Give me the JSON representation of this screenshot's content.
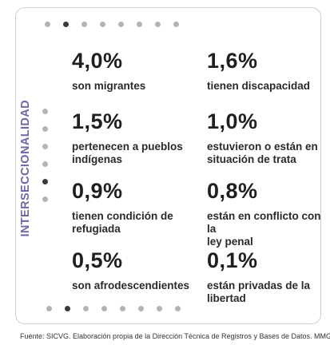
{
  "vertical_label": "INTERSECCIONALIDAD",
  "pagination": {
    "dots": 8,
    "active_index": 1
  },
  "side_dots": {
    "dots": 6,
    "active_index": 4
  },
  "stats": [
    {
      "value": "4,0%",
      "desc_lines": [
        "son migrantes"
      ]
    },
    {
      "value": "1,6%",
      "desc_lines": [
        "tienen discapacidad"
      ]
    },
    {
      "value": "1,5%",
      "desc_lines": [
        "pertenecen a pueblos",
        "indígenas"
      ]
    },
    {
      "value": "1,0%",
      "desc_lines": [
        "estuvieron o están en",
        "situación de trata"
      ]
    },
    {
      "value": "0,9%",
      "desc_lines": [
        "tienen condición de",
        "refugiada"
      ]
    },
    {
      "value": "0,8%",
      "desc_lines": [
        "están en conflicto con la",
        "ley penal"
      ]
    },
    {
      "value": "0,5%",
      "desc_lines": [
        "son afrodescendientes"
      ]
    },
    {
      "value": "0,1%",
      "desc_lines": [
        "están privadas de la",
        "libertad"
      ]
    }
  ],
  "footer": "Fuente: SICVG. Elaboración propia de la Dirección Técnica de Registros y Bases de Datos. MMGYD.",
  "colors": {
    "accent": "#6e67a6",
    "dot_inactive": "#b4b4b4",
    "dot_active": "#3b3b3b",
    "border": "#cfcfcf"
  }
}
